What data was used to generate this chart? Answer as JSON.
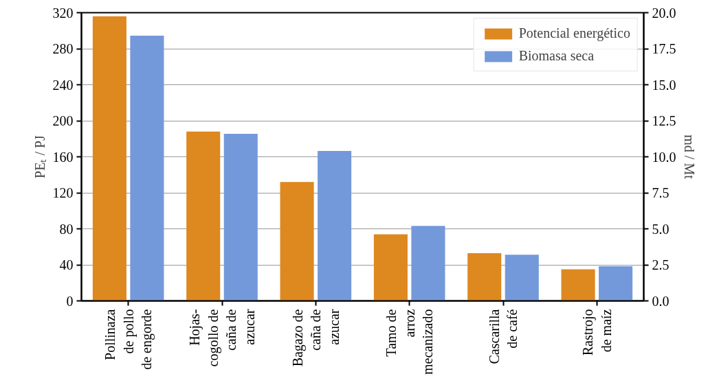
{
  "chart_data": {
    "type": "bar",
    "categories": [
      "Pollinaza de pollo de engorde",
      "Hojas-cogollo de caña de azucar",
      "Bagazo de caña de azucar",
      "Tamo de arroz mecanizado",
      "Cascarilla de café",
      "Rastrojo de maíz"
    ],
    "series": [
      {
        "name": "Potencial energético",
        "color": "#de8820",
        "values": [
          316,
          188,
          132,
          74,
          53,
          35
        ]
      },
      {
        "name": "Biomasa seca",
        "color": "#7499da",
        "axis": "y2",
        "values": [
          18.4,
          11.6,
          10.4,
          5.2,
          3.2,
          2.4
        ]
      }
    ],
    "ylabel": "PEₜ / PJ",
    "y2label": "md / Mt",
    "ylim": [
      0,
      320
    ],
    "yticks": [
      0,
      40,
      80,
      120,
      160,
      200,
      240,
      280,
      320
    ],
    "y2lim": [
      0,
      20
    ],
    "y2ticks": [
      {
        "value": 0,
        "label": "0.0"
      },
      {
        "value": 2.5,
        "label": "2.5"
      },
      {
        "value": 5,
        "label": "5.0"
      },
      {
        "value": 7.5,
        "label": "7.5"
      },
      {
        "value": 10,
        "label": "10.0"
      },
      {
        "value": 12.5,
        "label": "12.5"
      },
      {
        "value": 15,
        "label": "15.0"
      },
      {
        "value": 17.5,
        "label": "17.5"
      },
      {
        "value": 20,
        "label": "20.0"
      }
    ],
    "grid": "y",
    "legend": "top right"
  }
}
